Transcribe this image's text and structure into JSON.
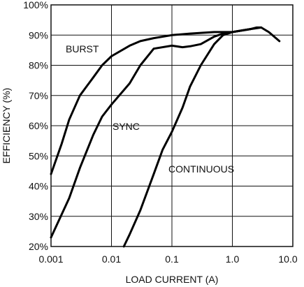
{
  "chart_data": {
    "type": "line",
    "xscale": "log",
    "xlabel": "LOAD CURRENT (A)",
    "ylabel": "EFFICIENCY (%)",
    "xlim": [
      0.001,
      10
    ],
    "ylim": [
      20,
      100
    ],
    "grid": true,
    "legend": "none",
    "x_tick_labels": [
      "0.001",
      "0.01",
      "0.1",
      "1.0",
      "10.0"
    ],
    "x_tick_values": [
      0.001,
      0.01,
      0.1,
      1,
      10
    ],
    "y_tick_labels": [
      "20%",
      "30%",
      "40%",
      "50%",
      "60%",
      "70%",
      "80%",
      "90%",
      "100%"
    ],
    "y_tick_values": [
      20,
      30,
      40,
      50,
      60,
      70,
      80,
      90,
      100
    ],
    "series": [
      {
        "name": "BURST",
        "x": [
          0.001,
          0.0015,
          0.002,
          0.003,
          0.005,
          0.007,
          0.01,
          0.02,
          0.03,
          0.05,
          0.1,
          0.2,
          0.5,
          1,
          2,
          2.5,
          3,
          4,
          6
        ],
        "y": [
          44,
          54,
          62,
          70,
          76,
          80,
          83,
          86.5,
          88,
          89,
          90,
          90.5,
          91,
          91,
          92,
          92.5,
          92.5,
          91,
          88
        ]
      },
      {
        "name": "SYNC",
        "x": [
          0.001,
          0.002,
          0.003,
          0.005,
          0.007,
          0.01,
          0.02,
          0.03,
          0.05,
          0.1,
          0.15,
          0.2,
          0.3,
          0.5,
          0.7,
          1,
          2,
          3
        ],
        "y": [
          23,
          36,
          46,
          57,
          63,
          67,
          74,
          80,
          85.5,
          86.5,
          86,
          86.3,
          87,
          89.5,
          90.5,
          91,
          92,
          92.5
        ]
      },
      {
        "name": "CONTINUOUS",
        "x": [
          0.016,
          0.02,
          0.03,
          0.05,
          0.07,
          0.1,
          0.15,
          0.2,
          0.3,
          0.5,
          0.7,
          1,
          2
        ],
        "y": [
          20,
          24,
          32,
          44,
          52,
          58,
          66,
          73,
          80,
          87,
          90,
          91,
          92
        ]
      }
    ]
  }
}
